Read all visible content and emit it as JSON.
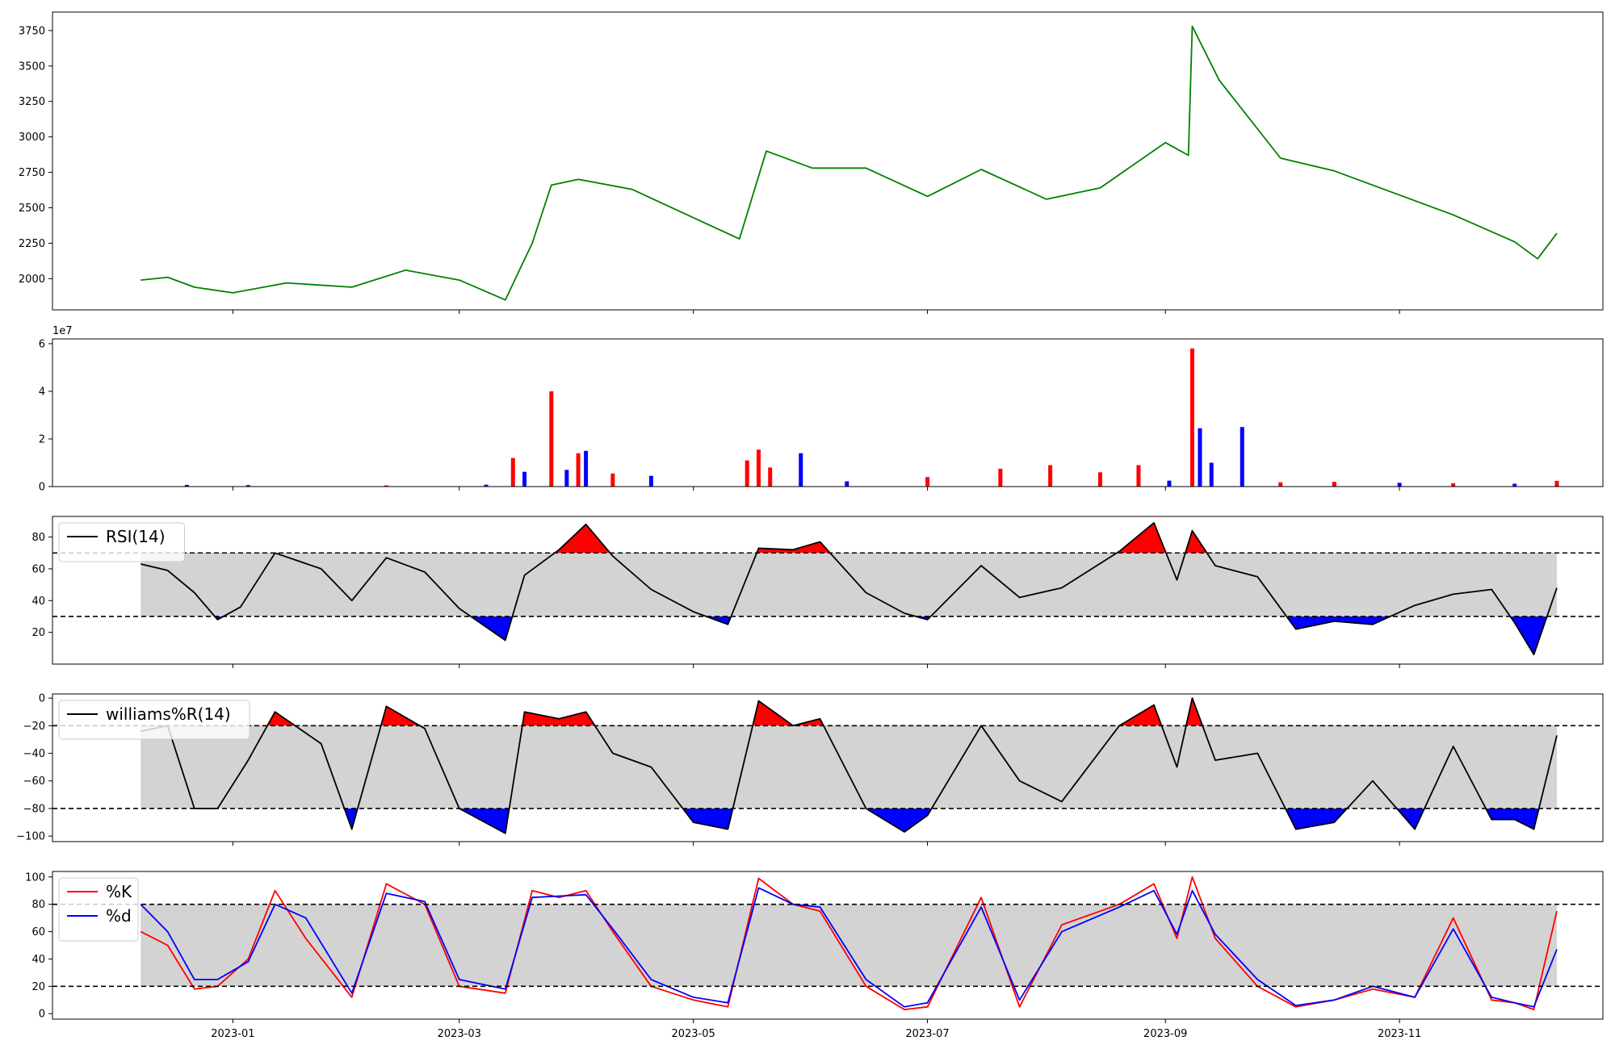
{
  "chart_data": [
    {
      "panel": "price",
      "type": "line",
      "x_range": [
        "2022-11-15",
        "2023-12-24"
      ],
      "ylim": [
        1780,
        3880
      ],
      "yticks": [
        2000,
        2250,
        2500,
        2750,
        3000,
        3250,
        3500,
        3750
      ],
      "line_color": "#008000",
      "x": [
        "2022-12-08",
        "2022-12-15",
        "2022-12-22",
        "2023-01-01",
        "2023-01-15",
        "2023-02-01",
        "2023-02-15",
        "2023-03-01",
        "2023-03-13",
        "2023-03-20",
        "2023-03-25",
        "2023-04-01",
        "2023-04-15",
        "2023-05-01",
        "2023-05-13",
        "2023-05-20",
        "2023-06-01",
        "2023-06-15",
        "2023-07-01",
        "2023-07-15",
        "2023-08-01",
        "2023-08-15",
        "2023-09-01",
        "2023-09-07",
        "2023-09-08",
        "2023-09-15",
        "2023-10-01",
        "2023-10-15",
        "2023-11-01",
        "2023-11-15",
        "2023-12-01",
        "2023-12-07",
        "2023-12-12"
      ],
      "values": [
        1990,
        2010,
        1940,
        1900,
        1970,
        1940,
        2060,
        1990,
        1850,
        2250,
        2660,
        2700,
        2630,
        2430,
        2280,
        2900,
        2780,
        2780,
        2580,
        2770,
        2560,
        2640,
        2960,
        2870,
        3780,
        3400,
        2850,
        2760,
        2590,
        2450,
        2260,
        2140,
        2320
      ]
    },
    {
      "panel": "volume",
      "type": "bar",
      "ylim": [
        0,
        62000000
      ],
      "yticks": [
        0,
        20000000,
        40000000,
        60000000
      ],
      "ytick_labels": [
        "0",
        "2",
        "4",
        "6"
      ],
      "offset_label": "1e7",
      "up_color": "#ff0000",
      "down_color": "#0000ff",
      "x": [
        "2022-12-20",
        "2023-01-05",
        "2023-02-10",
        "2023-03-08",
        "2023-03-15",
        "2023-03-18",
        "2023-03-25",
        "2023-03-29",
        "2023-04-01",
        "2023-04-03",
        "2023-04-10",
        "2023-04-20",
        "2023-05-15",
        "2023-05-18",
        "2023-05-21",
        "2023-05-29",
        "2023-06-10",
        "2023-07-01",
        "2023-07-20",
        "2023-08-02",
        "2023-08-15",
        "2023-08-25",
        "2023-09-02",
        "2023-09-08",
        "2023-09-10",
        "2023-09-13",
        "2023-09-21",
        "2023-10-01",
        "2023-10-15",
        "2023-11-01",
        "2023-11-15",
        "2023-12-01",
        "2023-12-12"
      ],
      "values": [
        700000,
        600000,
        500000,
        800000,
        12000000,
        6200000,
        40000000,
        7000000,
        14000000,
        15000000,
        5500000,
        4500000,
        11000000,
        15500000,
        8000000,
        14000000,
        2200000,
        4000000,
        7500000,
        9000000,
        6000000,
        9000000,
        2500000,
        58000000,
        24500000,
        10000000,
        25000000,
        1800000,
        2000000,
        1600000,
        1400000,
        1200000,
        2400000
      ],
      "colors": [
        "down",
        "down",
        "up",
        "down",
        "up",
        "down",
        "up",
        "down",
        "up",
        "down",
        "up",
        "down",
        "up",
        "up",
        "up",
        "down",
        "down",
        "up",
        "up",
        "up",
        "up",
        "up",
        "down",
        "up",
        "down",
        "down",
        "down",
        "up",
        "up",
        "down",
        "up",
        "down",
        "up"
      ]
    },
    {
      "panel": "rsi",
      "type": "line",
      "legend": [
        "RSI(14)"
      ],
      "ylim": [
        0,
        93
      ],
      "yticks": [
        20,
        40,
        60,
        80
      ],
      "upper_threshold": 70,
      "lower_threshold": 30,
      "x": [
        "2022-12-08",
        "2022-12-15",
        "2022-12-22",
        "2022-12-28",
        "2023-01-03",
        "2023-01-12",
        "2023-01-24",
        "2023-02-01",
        "2023-02-10",
        "2023-02-20",
        "2023-03-01",
        "2023-03-13",
        "2023-03-18",
        "2023-03-27",
        "2023-04-03",
        "2023-04-10",
        "2023-04-20",
        "2023-05-01",
        "2023-05-10",
        "2023-05-18",
        "2023-05-27",
        "2023-06-03",
        "2023-06-15",
        "2023-06-25",
        "2023-07-01",
        "2023-07-15",
        "2023-07-25",
        "2023-08-05",
        "2023-08-20",
        "2023-08-29",
        "2023-09-04",
        "2023-09-08",
        "2023-09-14",
        "2023-09-25",
        "2023-10-05",
        "2023-10-15",
        "2023-10-25",
        "2023-11-05",
        "2023-11-15",
        "2023-11-25",
        "2023-12-01",
        "2023-12-06",
        "2023-12-12"
      ],
      "values": [
        63,
        59,
        45,
        28,
        36,
        70,
        60,
        40,
        67,
        58,
        35,
        15,
        56,
        72,
        88,
        68,
        47,
        33,
        25,
        73,
        72,
        77,
        45,
        32,
        28,
        62,
        42,
        48,
        71,
        89,
        53,
        84,
        62,
        55,
        22,
        27,
        25,
        37,
        44,
        47,
        26,
        6,
        48
      ],
      "fill_color": "#d3d3d3",
      "above_color": "#ff0000",
      "below_color": "#0000ff"
    },
    {
      "panel": "williams",
      "type": "line",
      "legend": [
        "williams%R(14)"
      ],
      "ylim": [
        -104,
        3
      ],
      "yticks": [
        0,
        -20,
        -40,
        -60,
        -80,
        -100
      ],
      "ytick_labels": [
        "0",
        "−20",
        "−40",
        "−60",
        "−80",
        "−100"
      ],
      "upper_threshold": -20,
      "lower_threshold": -80,
      "x": [
        "2022-12-08",
        "2022-12-15",
        "2022-12-22",
        "2022-12-28",
        "2023-01-05",
        "2023-01-12",
        "2023-01-24",
        "2023-02-01",
        "2023-02-10",
        "2023-02-20",
        "2023-03-01",
        "2023-03-13",
        "2023-03-18",
        "2023-03-27",
        "2023-04-03",
        "2023-04-10",
        "2023-04-20",
        "2023-05-01",
        "2023-05-10",
        "2023-05-18",
        "2023-05-27",
        "2023-06-03",
        "2023-06-15",
        "2023-06-25",
        "2023-07-01",
        "2023-07-15",
        "2023-07-25",
        "2023-08-05",
        "2023-08-20",
        "2023-08-29",
        "2023-09-04",
        "2023-09-08",
        "2023-09-14",
        "2023-09-25",
        "2023-10-05",
        "2023-10-15",
        "2023-10-25",
        "2023-11-05",
        "2023-11-15",
        "2023-11-25",
        "2023-12-01",
        "2023-12-06",
        "2023-12-12"
      ],
      "values": [
        -24,
        -20,
        -80,
        -80,
        -45,
        -10,
        -33,
        -95,
        -6,
        -22,
        -80,
        -98,
        -10,
        -15,
        -10,
        -40,
        -50,
        -90,
        -95,
        -2,
        -20,
        -15,
        -80,
        -97,
        -85,
        -20,
        -60,
        -75,
        -20,
        -5,
        -50,
        0,
        -45,
        -40,
        -95,
        -90,
        -60,
        -95,
        -35,
        -88,
        -88,
        -95,
        -27
      ],
      "fill_color": "#d3d3d3",
      "above_color": "#ff0000",
      "below_color": "#0000ff"
    },
    {
      "panel": "stochastic",
      "type": "line",
      "ylim": [
        -4,
        104
      ],
      "yticks": [
        0,
        20,
        40,
        60,
        80,
        100
      ],
      "upper_threshold": 80,
      "lower_threshold": 20,
      "fill_color": "#d3d3d3",
      "series": [
        {
          "name": "%K",
          "color": "#ff0000",
          "x": [
            "2022-12-08",
            "2022-12-15",
            "2022-12-22",
            "2022-12-28",
            "2023-01-05",
            "2023-01-12",
            "2023-01-20",
            "2023-02-01",
            "2023-02-10",
            "2023-02-20",
            "2023-03-01",
            "2023-03-13",
            "2023-03-20",
            "2023-03-27",
            "2023-04-03",
            "2023-04-10",
            "2023-04-20",
            "2023-05-01",
            "2023-05-10",
            "2023-05-18",
            "2023-05-27",
            "2023-06-03",
            "2023-06-15",
            "2023-06-25",
            "2023-07-01",
            "2023-07-15",
            "2023-07-25",
            "2023-08-05",
            "2023-08-20",
            "2023-08-29",
            "2023-09-04",
            "2023-09-08",
            "2023-09-14",
            "2023-09-25",
            "2023-10-05",
            "2023-10-15",
            "2023-10-25",
            "2023-11-05",
            "2023-11-15",
            "2023-11-25",
            "2023-12-01",
            "2023-12-06",
            "2023-12-12"
          ],
          "values": [
            60,
            50,
            18,
            20,
            40,
            90,
            55,
            12,
            95,
            80,
            20,
            15,
            90,
            85,
            90,
            60,
            20,
            10,
            5,
            99,
            80,
            75,
            20,
            3,
            5,
            85,
            5,
            65,
            80,
            95,
            55,
            100,
            55,
            20,
            5,
            10,
            18,
            12,
            70,
            10,
            8,
            3,
            75
          ]
        },
        {
          "name": "%d",
          "color": "#0000ff",
          "x": [
            "2022-12-08",
            "2022-12-15",
            "2022-12-22",
            "2022-12-28",
            "2023-01-05",
            "2023-01-12",
            "2023-01-20",
            "2023-02-01",
            "2023-02-10",
            "2023-02-20",
            "2023-03-01",
            "2023-03-13",
            "2023-03-20",
            "2023-03-27",
            "2023-04-03",
            "2023-04-10",
            "2023-04-20",
            "2023-05-01",
            "2023-05-10",
            "2023-05-18",
            "2023-05-27",
            "2023-06-03",
            "2023-06-15",
            "2023-06-25",
            "2023-07-01",
            "2023-07-15",
            "2023-07-25",
            "2023-08-05",
            "2023-08-20",
            "2023-08-29",
            "2023-09-04",
            "2023-09-08",
            "2023-09-14",
            "2023-09-25",
            "2023-10-05",
            "2023-10-15",
            "2023-10-25",
            "2023-11-05",
            "2023-11-15",
            "2023-11-25",
            "2023-12-01",
            "2023-12-06",
            "2023-12-12"
          ],
          "values": [
            80,
            60,
            25,
            25,
            38,
            80,
            70,
            15,
            88,
            82,
            25,
            18,
            85,
            86,
            87,
            62,
            25,
            12,
            8,
            92,
            80,
            78,
            25,
            5,
            8,
            78,
            10,
            60,
            78,
            90,
            58,
            90,
            58,
            25,
            6,
            10,
            20,
            12,
            62,
            12,
            8,
            5,
            47
          ]
        }
      ]
    }
  ],
  "x_ticks": {
    "values": [
      "2023-01-01",
      "2023-03-01",
      "2023-05-01",
      "2023-07-01",
      "2023-09-01",
      "2023-11-01"
    ],
    "labels": [
      "2023-01",
      "2023-03",
      "2023-05",
      "2023-07",
      "2023-09",
      "2023-11"
    ]
  }
}
